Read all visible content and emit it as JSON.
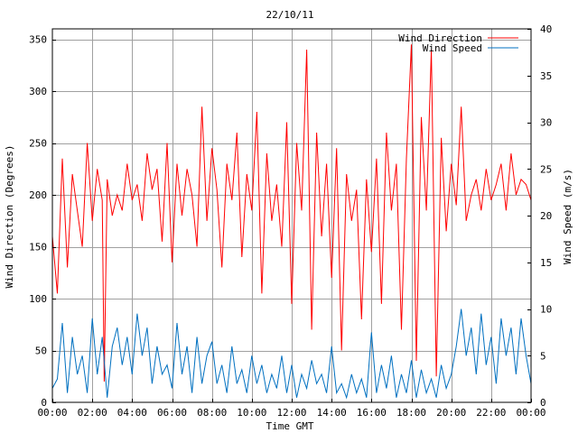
{
  "chart_data": {
    "type": "line",
    "title": "22/10/11",
    "xlabel": "Time GMT",
    "ylabel_left": "Wind Direction (Degrees)",
    "ylabel_right": "Wind Speed (m/s)",
    "xlim": [
      0,
      24
    ],
    "ylim_left": [
      0,
      360
    ],
    "ylim_right": [
      0,
      40
    ],
    "x_ticks": [
      {
        "value": 0,
        "label": "00:00"
      },
      {
        "value": 2,
        "label": "02:00"
      },
      {
        "value": 4,
        "label": "04:00"
      },
      {
        "value": 6,
        "label": "06:00"
      },
      {
        "value": 8,
        "label": "08:00"
      },
      {
        "value": 10,
        "label": "10:00"
      },
      {
        "value": 12,
        "label": "12:00"
      },
      {
        "value": 14,
        "label": "14:00"
      },
      {
        "value": 16,
        "label": "16:00"
      },
      {
        "value": 18,
        "label": "18:00"
      },
      {
        "value": 20,
        "label": "20:00"
      },
      {
        "value": 22,
        "label": "22:00"
      },
      {
        "value": 24,
        "label": "00:00"
      }
    ],
    "y_ticks_left": [
      {
        "value": 0,
        "label": "0"
      },
      {
        "value": 50,
        "label": "50"
      },
      {
        "value": 100,
        "label": "100"
      },
      {
        "value": 150,
        "label": "150"
      },
      {
        "value": 200,
        "label": "200"
      },
      {
        "value": 250,
        "label": "250"
      },
      {
        "value": 300,
        "label": "300"
      },
      {
        "value": 350,
        "label": "350"
      }
    ],
    "y_ticks_right": [
      {
        "value": 0,
        "label": "0"
      },
      {
        "value": 5,
        "label": "5"
      },
      {
        "value": 10,
        "label": "10"
      },
      {
        "value": 15,
        "label": "15"
      },
      {
        "value": 20,
        "label": "20"
      },
      {
        "value": 25,
        "label": "25"
      },
      {
        "value": 30,
        "label": "30"
      },
      {
        "value": 35,
        "label": "35"
      },
      {
        "value": 40,
        "label": "40"
      }
    ],
    "grid": true,
    "legend_position": "top-right",
    "series": [
      {
        "name": "Wind Direction",
        "axis": "left",
        "color": "#ff0000",
        "x": [
          0,
          0.25,
          0.5,
          0.75,
          1,
          1.25,
          1.5,
          1.75,
          2,
          2.25,
          2.5,
          2.6,
          2.75,
          3,
          3.25,
          3.5,
          3.75,
          4,
          4.25,
          4.5,
          4.75,
          5,
          5.25,
          5.5,
          5.75,
          6,
          6.25,
          6.5,
          6.75,
          7,
          7.25,
          7.5,
          7.75,
          8,
          8.25,
          8.5,
          8.75,
          9,
          9.25,
          9.5,
          9.75,
          10,
          10.25,
          10.5,
          10.75,
          11,
          11.25,
          11.5,
          11.75,
          12,
          12.25,
          12.5,
          12.75,
          13,
          13.25,
          13.5,
          13.75,
          14,
          14.25,
          14.5,
          14.75,
          15,
          15.25,
          15.5,
          15.75,
          16,
          16.25,
          16.5,
          16.75,
          17,
          17.25,
          17.5,
          17.75,
          18,
          18.25,
          18.5,
          18.75,
          19,
          19.25,
          19.5,
          19.75,
          20,
          20.25,
          20.5,
          20.75,
          21,
          21.25,
          21.5,
          21.75,
          22,
          22.25,
          22.5,
          22.75,
          23,
          23.25,
          23.5,
          23.75,
          24
        ],
        "values": [
          160,
          105,
          235,
          130,
          220,
          185,
          150,
          250,
          175,
          225,
          195,
          20,
          215,
          180,
          200,
          185,
          230,
          195,
          210,
          175,
          240,
          205,
          225,
          155,
          250,
          135,
          230,
          180,
          225,
          200,
          150,
          285,
          175,
          245,
          205,
          130,
          230,
          195,
          260,
          140,
          220,
          185,
          280,
          105,
          240,
          175,
          210,
          150,
          270,
          95,
          250,
          185,
          340,
          70,
          260,
          160,
          230,
          120,
          245,
          50,
          220,
          175,
          205,
          80,
          215,
          145,
          235,
          95,
          260,
          185,
          230,
          70,
          235,
          345,
          40,
          275,
          185,
          340,
          25,
          255,
          165,
          230,
          190,
          285,
          175,
          200,
          215,
          185,
          225,
          195,
          210,
          230,
          185,
          240,
          200,
          215,
          210,
          195
        ]
      },
      {
        "name": "Wind Speed",
        "axis": "right",
        "color": "#0070c0",
        "x": [
          0,
          0.25,
          0.5,
          0.75,
          1,
          1.25,
          1.5,
          1.75,
          2,
          2.25,
          2.5,
          2.75,
          3,
          3.25,
          3.5,
          3.75,
          4,
          4.25,
          4.5,
          4.75,
          5,
          5.25,
          5.5,
          5.75,
          6,
          6.25,
          6.5,
          6.75,
          7,
          7.25,
          7.5,
          7.75,
          8,
          8.25,
          8.5,
          8.75,
          9,
          9.25,
          9.5,
          9.75,
          10,
          10.25,
          10.5,
          10.75,
          11,
          11.25,
          11.5,
          11.75,
          12,
          12.25,
          12.5,
          12.75,
          13,
          13.25,
          13.5,
          13.75,
          14,
          14.25,
          14.5,
          14.75,
          15,
          15.25,
          15.5,
          15.75,
          16,
          16.25,
          16.5,
          16.75,
          17,
          17.25,
          17.5,
          17.75,
          18,
          18.25,
          18.5,
          18.75,
          19,
          19.25,
          19.5,
          19.75,
          20,
          20.25,
          20.5,
          20.75,
          21,
          21.25,
          21.5,
          21.75,
          22,
          22.25,
          22.5,
          22.75,
          23,
          23.25,
          23.5,
          23.75,
          24
        ],
        "values": [
          1.5,
          2.5,
          8.5,
          1,
          7,
          3,
          5,
          1,
          9,
          3,
          7,
          0.5,
          6,
          8,
          4,
          7,
          3,
          9.5,
          5,
          8,
          2,
          6,
          3,
          4,
          1.5,
          8.5,
          3,
          6,
          1,
          7,
          2,
          5,
          6.5,
          2,
          4,
          1,
          6,
          2,
          3.5,
          1,
          5,
          2,
          4,
          1,
          3,
          1.5,
          5,
          1,
          4,
          0.5,
          3,
          1.5,
          4.5,
          2,
          3,
          1,
          6,
          1,
          2,
          0.5,
          3,
          1,
          2.5,
          0.5,
          7.5,
          1,
          4,
          1.5,
          5,
          0.5,
          3,
          1,
          4.5,
          0.5,
          3.5,
          1,
          2.5,
          0.5,
          4,
          1.5,
          3,
          6,
          10,
          5,
          8,
          3,
          9.5,
          4,
          7,
          2,
          9,
          5,
          8,
          3,
          9,
          5,
          2
        ]
      }
    ]
  }
}
